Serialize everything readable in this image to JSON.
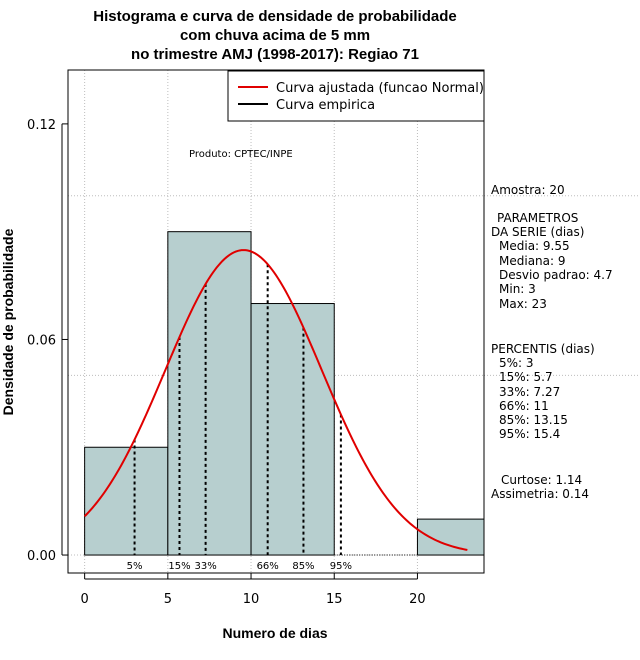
{
  "chart_data": {
    "type": "bar",
    "title_lines": [
      "Histograma e curva de densidade de probabilidade",
      "com chuva acima de 5 mm",
      "no trimestre AMJ (1998-2017): Regiao 71"
    ],
    "xlabel": "Numero de dias",
    "ylabel": "Densidade de probabilidade",
    "xlim": [
      -1,
      24
    ],
    "ylim": [
      -0.005,
      0.135
    ],
    "x_ticks": [
      0,
      5,
      10,
      15,
      20
    ],
    "y_ticks": [
      0.0,
      0.06,
      0.12
    ],
    "y_tick_labels": [
      "0.00",
      "0.06",
      "0.12"
    ],
    "grid": true,
    "grid_x": [
      0,
      5,
      10,
      15,
      20
    ],
    "grid_y": [
      0.0,
      0.05,
      0.1
    ],
    "histogram": {
      "color": "#b7cfcf",
      "bins": [
        {
          "x0": 0,
          "x1": 5,
          "density": 0.03
        },
        {
          "x0": 5,
          "x1": 10,
          "density": 0.09
        },
        {
          "x0": 10,
          "x1": 15,
          "density": 0.07
        },
        {
          "x0": 15,
          "x1": 20,
          "density": 0.0
        },
        {
          "x0": 20,
          "x1": 25,
          "density": 0.01
        }
      ]
    },
    "normal_curve": {
      "name": "Curva ajustada (funcao Normal)",
      "color": "#e00000",
      "mean": 9.55,
      "sd": 4.7,
      "x_range": [
        0,
        23
      ]
    },
    "empirical_curve": {
      "name": "Curva empirica",
      "color": "#000000"
    },
    "legend": {
      "placement": "top-right",
      "entries": [
        {
          "label": "Curva ajustada (funcao Normal)",
          "color": "#e00000"
        },
        {
          "label": "Curva empirica",
          "color": "#000000"
        }
      ]
    },
    "percentile_lines": [
      {
        "label": "5%",
        "value": 3
      },
      {
        "label": "15%",
        "value": 5.7
      },
      {
        "label": "33%",
        "value": 7.27
      },
      {
        "label": "66%",
        "value": 11
      },
      {
        "label": "85%",
        "value": 13.15
      },
      {
        "label": "95%",
        "value": 15.4
      }
    ],
    "annotations": {
      "product": "Produto: CPTEC/INPE",
      "sample": "Amostra: 20",
      "params_title_1": "PARAMETROS",
      "params_title_2": "DA SERIE (dias)",
      "params": [
        "Media: 9.55",
        "Mediana: 9",
        "Desvio padrao: 4.7",
        "Min: 3",
        "Max: 23"
      ],
      "percentis_title": "PERCENTIS (dias)",
      "percentis": [
        "5%: 3",
        "15%: 5.7",
        "33%: 7.27",
        "66%: 11",
        "85%: 13.15",
        "95%: 15.4"
      ],
      "curtose": "Curtose: 1.14",
      "assimetria": "Assimetria: 0.14"
    }
  }
}
